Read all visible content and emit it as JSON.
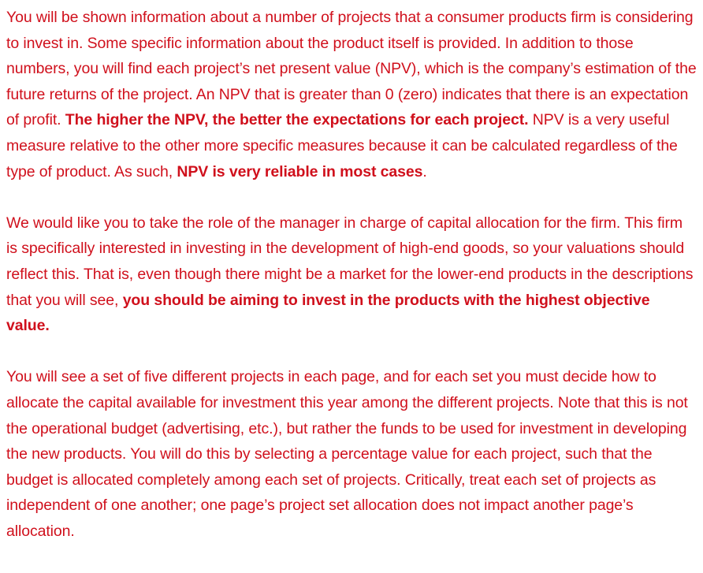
{
  "instructions": {
    "paragraph_1": {
      "text_a": "You will be shown information about a number of projects that a consumer products firm is considering to invest in. Some specific information about the product itself is provided. In addition to those numbers, you will find each project’s net present value (NPV), which is the company’s estimation of the future returns of the project. An NPV that is greater than 0 (zero) indicates that there is an expectation of profit. ",
      "bold_a": "The higher the NPV, the better the expectations for each project.",
      "text_b": " NPV is a very useful measure relative to the other more specific measures because it can be calculated regardless of the type of product. As such, ",
      "bold_b": "NPV is very reliable in most cases",
      "text_c": "."
    },
    "paragraph_2": {
      "text_a": "We would like you to take the role of the manager in charge of capital allocation for the firm. This firm is specifically interested in investing in the development of high-end goods, so your valuations should reflect this. That is, even though there might be a market for the lower-end products in the descriptions that you will see, ",
      "bold_a": "you should be aiming to invest in the products with the highest objective value."
    },
    "paragraph_3": {
      "text_a": "You will see a set of five different projects in each page, and for each set you must decide how to allocate the capital available for investment this year among the different projects. Note that this is not the operational budget (advertising, etc.), but rather the funds to be used for investment in developing the new products. You will do this by selecting a percentage value for each project, such that the budget is allocated completely among each set of projects. Critically, treat each set of projects as independent of one another; one page’s project set allocation does not impact another page’s allocation."
    },
    "text_color": "#d0101c"
  }
}
